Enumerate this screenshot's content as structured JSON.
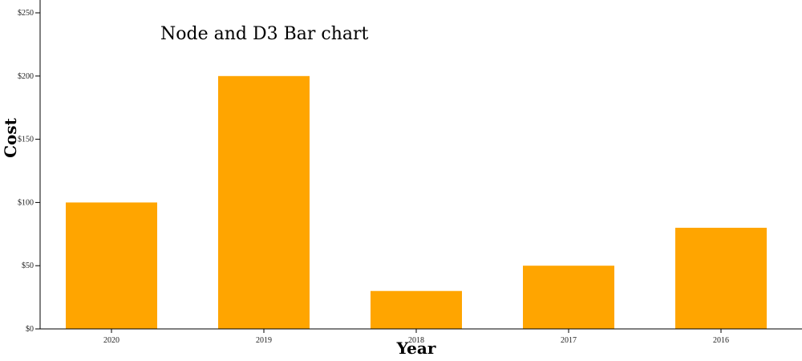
{
  "chart_data": {
    "type": "bar",
    "title": "Node and D3 Bar chart",
    "xlabel": "Year",
    "ylabel": "Cost",
    "categories": [
      "2020",
      "2019",
      "2018",
      "2017",
      "2016"
    ],
    "values": [
      100,
      200,
      30,
      50,
      80
    ],
    "ylim": [
      0,
      250
    ],
    "yticks": [
      0,
      50,
      100,
      150,
      200,
      250
    ],
    "ytick_labels": [
      "$0",
      "$50",
      "$100",
      "$150",
      "$200",
      "$250"
    ],
    "bar_color": "#FFA500",
    "grid": false,
    "legend": "none"
  }
}
